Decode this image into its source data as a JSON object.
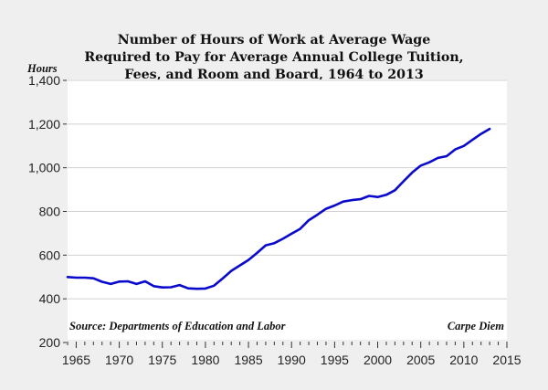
{
  "chart_data": {
    "type": "line",
    "title": "Number of Hours of Work at Average Wage Required to Pay for Average Annual College Tuition, Fees, and Room and Board, 1964 to 2013",
    "title_lines": [
      "Number of Hours of Work at Average Wage",
      "Required to Pay for Average Annual College Tuition,",
      "Fees, and Room and Board, 1964 to 2013"
    ],
    "xlabel": "",
    "ylabel": "Hours",
    "xlim": [
      1964,
      2015
    ],
    "ylim": [
      200,
      1400
    ],
    "x_ticks": [
      1965,
      1970,
      1975,
      1980,
      1985,
      1990,
      1995,
      2000,
      2005,
      2010,
      2015
    ],
    "y_ticks": [
      200,
      400,
      600,
      800,
      1000,
      1200,
      1400
    ],
    "y_tick_labels": [
      "200",
      "400",
      "600",
      "800",
      "1,000",
      "1,200",
      "1,400"
    ],
    "grid": "horizontal",
    "legend": null,
    "series": [
      {
        "name": "Hours of work",
        "color": "#0a0acc",
        "x": [
          1964,
          1965,
          1966,
          1967,
          1968,
          1969,
          1970,
          1971,
          1972,
          1973,
          1974,
          1975,
          1976,
          1977,
          1978,
          1979,
          1980,
          1981,
          1982,
          1983,
          1984,
          1985,
          1986,
          1987,
          1988,
          1989,
          1990,
          1991,
          1992,
          1993,
          1994,
          1995,
          1996,
          1997,
          1998,
          1999,
          2000,
          2001,
          2002,
          2003,
          2004,
          2005,
          2006,
          2007,
          2008,
          2009,
          2010,
          2011,
          2012,
          2013
        ],
        "values": [
          500,
          497,
          497,
          494,
          478,
          468,
          479,
          480,
          468,
          480,
          458,
          452,
          453,
          463,
          448,
          446,
          447,
          460,
          493,
          528,
          553,
          578,
          610,
          645,
          655,
          675,
          698,
          720,
          760,
          785,
          812,
          827,
          845,
          852,
          856,
          871,
          866,
          876,
          897,
          938,
          978,
          1010,
          1025,
          1045,
          1053,
          1084,
          1100,
          1128,
          1155,
          1178
        ]
      }
    ],
    "annotations": [
      "Source: Departments of Education and Labor",
      "Carpe Diem"
    ]
  },
  "labels": {
    "ylabel": "Hours",
    "source": "Source: Departments of Education and Labor",
    "credit": "Carpe Diem"
  }
}
